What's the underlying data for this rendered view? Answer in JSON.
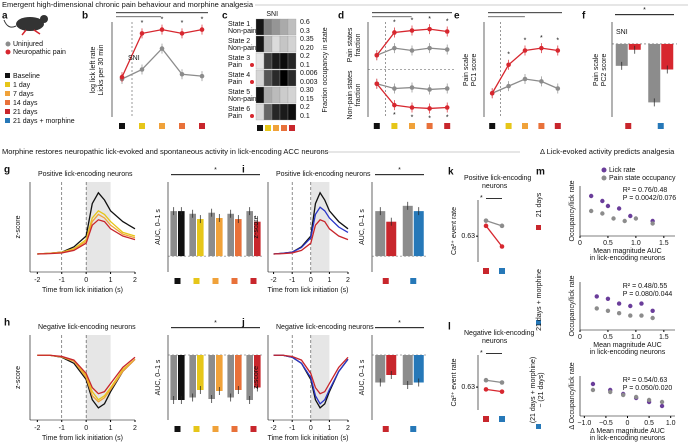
{
  "headers": {
    "top": "Emergent high-dimensional chronic pain behaviour and morphine analgesia",
    "middle_left": "Morphine restores neuropathic lick-evoked and spontaneous activity in lick-encoding ACC neurons",
    "middle_right": "Δ Lick-evoked activity predicts analgesia"
  },
  "panel_a": {
    "letter": "a",
    "groups": [
      {
        "name": "Uninjured",
        "color": "#8c8c8c"
      },
      {
        "name": "Neuropathic pain",
        "color": "#d7272f"
      }
    ],
    "conditions": [
      {
        "name": "Baseline",
        "color": "#111111"
      },
      {
        "name": "1 day",
        "color": "#e6c619"
      },
      {
        "name": "7 days",
        "color": "#f0a23a"
      },
      {
        "name": "14 days",
        "color": "#e8713a"
      },
      {
        "name": "21 days",
        "color": "#c8262c"
      },
      {
        "name": "21 days + morphine",
        "color": "#2678b8"
      }
    ]
  },
  "panel_b": {
    "letter": "b",
    "annotation": "SNI",
    "star": "*",
    "ylabel": [
      "log lick left rate",
      "Licks per 30 min"
    ],
    "ylim": [
      0,
      1
    ],
    "x_colors": [
      "#111111",
      "#e6c619",
      "#f0a23a",
      "#e8713a",
      "#c8262c"
    ],
    "series": [
      {
        "color": "#8c8c8c",
        "values": [
          0.4,
          0.5,
          0.72,
          0.45,
          0.43
        ]
      },
      {
        "color": "#d7272f",
        "values": [
          0.42,
          0.88,
          0.92,
          0.88,
          0.92
        ]
      }
    ]
  },
  "panel_c": {
    "letter": "c",
    "annotation": "SNI",
    "ylabel": "Fraction occupancy in state",
    "x_colors": [
      "#111111",
      "#e6c619",
      "#f0a23a",
      "#e8713a",
      "#c8262c"
    ],
    "states": [
      {
        "label": [
          "State 1",
          "Non-pain"
        ],
        "color": "#8c8c8c",
        "ticks": [
          0.6,
          0.3
        ],
        "values": [
          0.55,
          0.3,
          0.25,
          0.2,
          0.15
        ]
      },
      {
        "label": [
          "State 2",
          "Non-pain"
        ],
        "color": "#8c8c8c",
        "ticks": [
          0.35,
          {
            "value": 0.2,
            "label": "0.20"
          }
        ],
        "values": [
          0.32,
          0.1,
          0.05,
          0.08,
          0.06
        ]
      },
      {
        "label": [
          "State 3",
          "Pain"
        ],
        "color": "#d7272f",
        "ticks": [
          0.2,
          0.1
        ],
        "values": [
          0.02,
          0.15,
          0.18,
          0.19,
          0.17
        ]
      },
      {
        "label": [
          "State 4",
          "Pain"
        ],
        "color": "#d7272f",
        "ticks": [
          0.006,
          0.003
        ],
        "values": [
          0.001,
          0.004,
          0.005,
          0.006,
          0.005
        ]
      },
      {
        "label": [
          "State 5",
          "Non-pain"
        ],
        "color": "#8c8c8c",
        "ticks": [
          {
            "value": 0.3,
            "label": "0.30"
          },
          0.15
        ],
        "values": [
          0.28,
          0.1,
          0.08,
          0.06,
          0.05
        ]
      },
      {
        "label": [
          "State 6",
          "Pain"
        ],
        "color": "#d7272f",
        "ticks": [
          0.2,
          0.1
        ],
        "values": [
          0.03,
          0.12,
          0.17,
          0.18,
          0.19
        ]
      }
    ]
  },
  "panel_d": {
    "letter": "d",
    "star": "*",
    "ylabel": [
      "Pain states",
      "fraction",
      "Non-pain states",
      "fraction"
    ],
    "ylim": [
      -1,
      1
    ],
    "x_colors": [
      "#111111",
      "#e6c619",
      "#f0a23a",
      "#e8713a",
      "#c8262c"
    ],
    "series": [
      {
        "color": "#8c8c8c",
        "values": [
          0.3,
          0.45,
          0.4,
          0.45,
          0.42
        ]
      },
      {
        "color": "#d7272f",
        "values": [
          0.3,
          0.78,
          0.82,
          0.85,
          0.8
        ]
      },
      {
        "color": "#8c8c8c",
        "values": [
          -0.3,
          -0.4,
          -0.38,
          -0.42,
          -0.4
        ]
      },
      {
        "color": "#d7272f",
        "values": [
          -0.3,
          -0.75,
          -0.8,
          -0.82,
          -0.8
        ]
      }
    ]
  },
  "panel_e": {
    "letter": "e",
    "star": "*",
    "ylabel": [
      "Pain scale",
      "PC1 score"
    ],
    "ylim": [
      -1,
      1
    ],
    "x_colors": [
      "#111111",
      "#e6c619",
      "#f0a23a",
      "#e8713a",
      "#c8262c"
    ],
    "series": [
      {
        "color": "#8c8c8c",
        "values": [
          -0.5,
          -0.35,
          -0.2,
          -0.25,
          -0.4
        ]
      },
      {
        "color": "#d7272f",
        "values": [
          -0.5,
          0.1,
          0.4,
          0.45,
          0.4
        ]
      }
    ]
  },
  "panel_f": {
    "letter": "f",
    "annotation": "SNI",
    "star": "*",
    "ylabel": [
      "Pain scale",
      "PC2 score"
    ],
    "ylim": [
      -1,
      0.3
    ],
    "x_colors": [
      "#c8262c",
      "#2678b8"
    ],
    "series": [
      {
        "color": "#8c8c8c",
        "values": [
          -0.3,
          -0.8
        ]
      },
      {
        "color": "#d7272f",
        "values": [
          -0.08,
          -0.35
        ]
      }
    ]
  },
  "panel_g": {
    "letter": "g",
    "title": "Positive lick-encoding neurons",
    "ylabel": "z-score",
    "xlabel": "Time from lick initiation (s)",
    "xlim": [
      -2.3,
      2
    ],
    "xticks": [
      -2,
      -1,
      0,
      1,
      2
    ],
    "ylim": [
      -0.5,
      2
    ],
    "x": [
      -2,
      -1.5,
      -1,
      -0.5,
      0,
      0.25,
      0.5,
      0.75,
      1,
      1.5,
      2
    ],
    "series": [
      {
        "color": "#111111",
        "values": [
          0,
          0.02,
          0.05,
          0.2,
          0.5,
          1.4,
          1.7,
          1.5,
          1.2,
          0.9,
          0.7
        ]
      },
      {
        "color": "#e6c619",
        "values": [
          0,
          0.02,
          0.05,
          0.15,
          0.4,
          1.0,
          1.2,
          1.1,
          0.9,
          0.6,
          0.5
        ]
      },
      {
        "color": "#f0a23a",
        "values": [
          0,
          0.02,
          0.04,
          0.12,
          0.35,
          0.9,
          1.1,
          1.0,
          0.8,
          0.55,
          0.45
        ]
      },
      {
        "color": "#c8262c",
        "values": [
          0,
          0.01,
          0.03,
          0.1,
          0.3,
          0.8,
          0.95,
          0.9,
          0.7,
          0.5,
          0.4
        ]
      }
    ],
    "bars": {
      "ylabel": "AUC, 0–1 s",
      "ylim": [
        -0.3,
        1.4
      ],
      "x_colors": [
        "#111111",
        "#e6c619",
        "#f0a23a",
        "#e8713a",
        "#c8262c"
      ],
      "series": [
        {
          "color": "#8c8c8c",
          "values": [
            0.85,
            0.8,
            0.82,
            0.8,
            0.85
          ]
        },
        {
          "values": [
            0.85,
            0.7,
            0.72,
            0.7,
            0.65
          ]
        }
      ],
      "star": "*"
    }
  },
  "panel_h": {
    "letter": "h",
    "title": "Negative lick-encoding neurons",
    "ylabel": "z-score",
    "xlabel": "Time from lick initiation (s)",
    "xlim": [
      -2.3,
      2
    ],
    "xticks": [
      -2,
      -1,
      0,
      1,
      2
    ],
    "ylim": [
      -1.6,
      0.5
    ],
    "x": [
      -2,
      -1.5,
      -1,
      -0.5,
      0,
      0.25,
      0.5,
      0.75,
      1,
      1.5,
      2
    ],
    "series": [
      {
        "color": "#111111",
        "values": [
          0,
          0,
          -0.05,
          -0.2,
          -0.6,
          -1.1,
          -1.3,
          -1.2,
          -0.9,
          -0.4,
          -0.1
        ]
      },
      {
        "color": "#e6c619",
        "values": [
          0,
          0,
          -0.04,
          -0.15,
          -0.5,
          -0.9,
          -1.1,
          -1.0,
          -0.8,
          -0.35,
          -0.1
        ]
      },
      {
        "color": "#f0a23a",
        "values": [
          0,
          0,
          -0.04,
          -0.15,
          -0.55,
          -1.0,
          -1.15,
          -1.05,
          -0.85,
          -0.4,
          -0.1
        ]
      },
      {
        "color": "#c8262c",
        "values": [
          0,
          0,
          -0.03,
          -0.12,
          -0.45,
          -0.8,
          -0.95,
          -0.9,
          -0.7,
          -0.3,
          -0.05
        ]
      }
    ],
    "bars": {
      "ylabel": "AUC, 0–1 s",
      "ylim": [
        -1.3,
        0.4
      ],
      "x_colors": [
        "#111111",
        "#e6c619",
        "#f0a23a",
        "#e8713a",
        "#c8262c"
      ],
      "series": [
        {
          "color": "#8c8c8c",
          "values": [
            -0.9,
            -0.85,
            -0.88,
            -0.85,
            -0.9
          ]
        },
        {
          "values": [
            -0.9,
            -0.7,
            -0.72,
            -0.7,
            -0.65
          ]
        }
      ],
      "star": "*"
    }
  },
  "panel_i": {
    "letter": "i",
    "title": "Positive lick-encoding neurons",
    "ylabel": "z-score",
    "xlabel": "Time from lick initiation (s)",
    "xlim": [
      -2.3,
      2
    ],
    "xticks": [
      -2,
      -1,
      0,
      1,
      2
    ],
    "ylim": [
      -0.5,
      2
    ],
    "x": [
      -2,
      -1.5,
      -1,
      -0.5,
      0,
      0.25,
      0.5,
      0.75,
      1,
      1.5,
      2
    ],
    "series": [
      {
        "color": "#111111",
        "values": [
          0,
          0.02,
          0.05,
          0.2,
          0.5,
          1.4,
          1.7,
          1.5,
          1.2,
          0.9,
          0.7
        ]
      },
      {
        "color": "#2a35c8",
        "values": [
          0,
          0.02,
          0.05,
          0.18,
          0.45,
          1.1,
          1.3,
          1.2,
          1.0,
          0.75,
          0.6
        ]
      },
      {
        "color": "#c8262c",
        "values": [
          0,
          0.01,
          0.03,
          0.1,
          0.3,
          0.8,
          0.95,
          0.9,
          0.7,
          0.5,
          0.4
        ]
      }
    ],
    "bars": {
      "ylabel": "AUC, 0–1 s",
      "ylim": [
        -0.3,
        1.4
      ],
      "x_colors": [
        "#c8262c",
        "#2678b8"
      ],
      "series": [
        {
          "color": "#8c8c8c",
          "values": [
            0.85,
            0.95
          ]
        },
        {
          "values": [
            0.65,
            0.85
          ]
        }
      ],
      "star": "*"
    }
  },
  "panel_j": {
    "letter": "j",
    "title": "Negative lick-encoding neurons",
    "ylabel": "z-score",
    "xlabel": "Time from lick initiation (s)",
    "xlim": [
      -2.3,
      2
    ],
    "xticks": [
      -2,
      -1,
      0,
      1,
      2
    ],
    "ylim": [
      -1.6,
      0.5
    ],
    "x": [
      -2,
      -1.5,
      -1,
      -0.5,
      0,
      0.25,
      0.5,
      0.75,
      1,
      1.5,
      2
    ],
    "series": [
      {
        "color": "#111111",
        "values": [
          0,
          0,
          -0.05,
          -0.2,
          -0.6,
          -1.1,
          -1.3,
          -1.2,
          -0.9,
          -0.4,
          -0.1
        ]
      },
      {
        "color": "#2a35c8",
        "values": [
          0,
          0,
          -0.05,
          -0.2,
          -0.55,
          -1.0,
          -1.2,
          -1.1,
          -0.85,
          -0.4,
          -0.1
        ]
      },
      {
        "color": "#c8262c",
        "values": [
          0,
          0,
          -0.03,
          -0.12,
          -0.45,
          -0.8,
          -0.95,
          -0.9,
          -0.7,
          -0.3,
          -0.05
        ]
      }
    ],
    "bars": {
      "ylabel": "AUC, 0–1 s",
      "ylim": [
        -1.3,
        0.4
      ],
      "x_colors": [
        "#c8262c",
        "#2678b8"
      ],
      "series": [
        {
          "color": "#8c8c8c",
          "values": [
            -0.55,
            -0.6
          ]
        },
        {
          "values": [
            -0.4,
            -0.55
          ]
        }
      ],
      "star": "*"
    }
  },
  "panel_k": {
    "letter": "k",
    "title": [
      "Positive lick-encoding",
      "neurons"
    ],
    "ylabel": "Ca²⁺ event rate",
    "star": "*",
    "ylim": [
      0.58,
      0.7
    ],
    "yticks": [
      0.63
    ],
    "x_colors": [
      "#c8262c",
      "#2678b8"
    ],
    "series": [
      {
        "color": "#8c8c8c",
        "values": [
          0.66,
          0.65
        ]
      },
      {
        "color": "#d7272f",
        "values": [
          0.65,
          0.61
        ]
      }
    ]
  },
  "panel_l": {
    "letter": "l",
    "title": [
      "Negative lick-encoding",
      "neurons"
    ],
    "ylabel": "Ca²⁺ event rate",
    "star": "*",
    "ylim": [
      0.58,
      0.7
    ],
    "yticks": [
      0.63
    ],
    "x_colors": [
      "#c8262c",
      "#2678b8"
    ],
    "series": [
      {
        "color": "#8c8c8c",
        "values": [
          0.645,
          0.64
        ]
      },
      {
        "color": "#d7272f",
        "values": [
          0.625,
          0.62
        ]
      }
    ]
  },
  "panel_m": {
    "letter": "m",
    "legend": [
      {
        "name": "Lick rate",
        "color": "#6a3d9a"
      },
      {
        "name": "Pain state occupancy",
        "color": "#8c8c8c"
      }
    ],
    "plots": [
      {
        "side_label": [
          "21 days"
        ],
        "side_color": "#c8262c",
        "ylabel": [
          "Occupancy/lick rate"
        ],
        "xlabel": [
          "Mean magnitude AUC",
          "in lick-encoding neurons"
        ],
        "stats": [
          "R² = 0.76/0.48",
          "P = 0.0042/0.076"
        ],
        "xlim": [
          0,
          1.7
        ],
        "xticks": [
          0,
          0.5,
          {
            "value": 1,
            "label": "1.0"
          },
          1.5
        ],
        "ylim": [
          0,
          1
        ],
        "series": [
          {
            "color": "#6a3d9a",
            "x": [
              0.2,
              0.4,
              0.5,
              0.7,
              0.9,
              1.3
            ],
            "y": [
              0.8,
              0.7,
              0.6,
              0.55,
              0.4,
              0.3
            ]
          },
          {
            "color": "#8c8c8c",
            "x": [
              0.2,
              0.4,
              0.6,
              0.8,
              1.0,
              1.3
            ],
            "y": [
              0.5,
              0.45,
              0.35,
              0.3,
              0.35,
              0.25
            ]
          }
        ]
      },
      {
        "side_label": [
          "21 days + morphine"
        ],
        "side_color": "#2678b8",
        "ylabel": [
          "Occupancy/lick rate"
        ],
        "xlabel": [
          "Mean magnitude AUC",
          "in lick-encoding neurons"
        ],
        "stats": [
          "R² = 0.48/0.55",
          "P = 0.080/0.044"
        ],
        "xlim": [
          0,
          1.7
        ],
        "xticks": [
          0,
          0.5,
          {
            "value": 1,
            "label": "1.0"
          },
          1.5
        ],
        "ylim": [
          0,
          1
        ],
        "series": [
          {
            "color": "#6a3d9a",
            "x": [
              0.3,
              0.5,
              0.7,
              0.9,
              1.1,
              1.3
            ],
            "y": [
              0.7,
              0.65,
              0.55,
              0.5,
              0.55,
              0.4
            ]
          },
          {
            "color": "#8c8c8c",
            "x": [
              0.3,
              0.5,
              0.7,
              0.9,
              1.1,
              1.3
            ],
            "y": [
              0.45,
              0.4,
              0.35,
              0.3,
              0.3,
              0.25
            ]
          }
        ]
      },
      {
        "side_label": [
          "(21 days + morphine)",
          "− (21 days)"
        ],
        "side_color": "#2678b8",
        "ylabel": [
          "Δ Occupancy/lick rate"
        ],
        "xlabel": [
          "Δ Mean magnitude AUC",
          "in lick-encoding neurons"
        ],
        "stats": [
          "R² = 0.54/0.63",
          "P = 0.050/0.020"
        ],
        "xlim": [
          -1.1,
          1.1
        ],
        "xticks": [
          {
            "value": -1,
            "label": "−1.0"
          },
          {
            "value": -0.5,
            "label": "−0.5"
          },
          0,
          0.5,
          {
            "value": 1,
            "label": "1.0"
          }
        ],
        "ylim": [
          -1,
          1
        ],
        "series": [
          {
            "color": "#6a3d9a",
            "x": [
              -0.8,
              -0.4,
              -0.1,
              0.2,
              0.5,
              0.8
            ],
            "y": [
              0.6,
              0.3,
              0.1,
              -0.1,
              -0.3,
              -0.5
            ]
          },
          {
            "color": "#8c8c8c",
            "x": [
              -0.8,
              -0.4,
              -0.1,
              0.2,
              0.5,
              0.8
            ],
            "y": [
              0.3,
              0.2,
              0.05,
              -0.05,
              -0.2,
              -0.3
            ]
          }
        ]
      }
    ]
  }
}
